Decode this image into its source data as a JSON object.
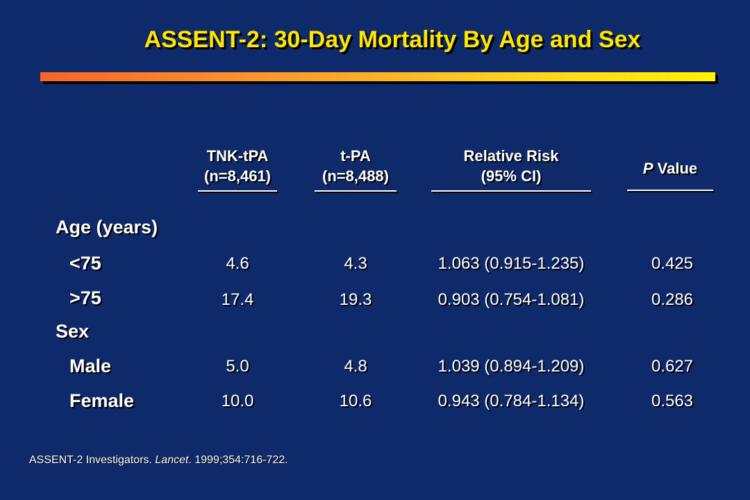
{
  "title": "ASSENT-2: 30-Day Mortality By Age and Sex",
  "columns": {
    "tnk": {
      "line1": "TNK-tPA",
      "line2": "(n=8,461)"
    },
    "tpa": {
      "line1": "t-PA",
      "line2": "(n=8,488)"
    },
    "rr": {
      "line1": "Relative Risk",
      "line2": "(95% CI)"
    },
    "p": {
      "italic": "P",
      "rest": " Value"
    }
  },
  "groups": {
    "age": "Age (years)",
    "sex": "Sex"
  },
  "rows": [
    {
      "label": "<75",
      "tnk": "4.6",
      "tpa": "4.3",
      "rr": "1.063 (0.915-1.235)",
      "p": "0.425"
    },
    {
      "label": ">75",
      "tnk": "17.4",
      "tpa": "19.3",
      "rr": "0.903 (0.754-1.081)",
      "p": "0.286"
    },
    {
      "label": "Male",
      "tnk": "5.0",
      "tpa": "4.8",
      "rr": "1.039 (0.894-1.209)",
      "p": "0.627"
    },
    {
      "label": "Female",
      "tnk": "10.0",
      "tpa": "10.6",
      "rr": "0.943 (0.784-1.134)",
      "p": "0.563"
    }
  ],
  "footnote": {
    "authors": "ASSENT-2 Investigators. ",
    "journal": "Lancet",
    "rest": ". 1999;354:716-722."
  }
}
